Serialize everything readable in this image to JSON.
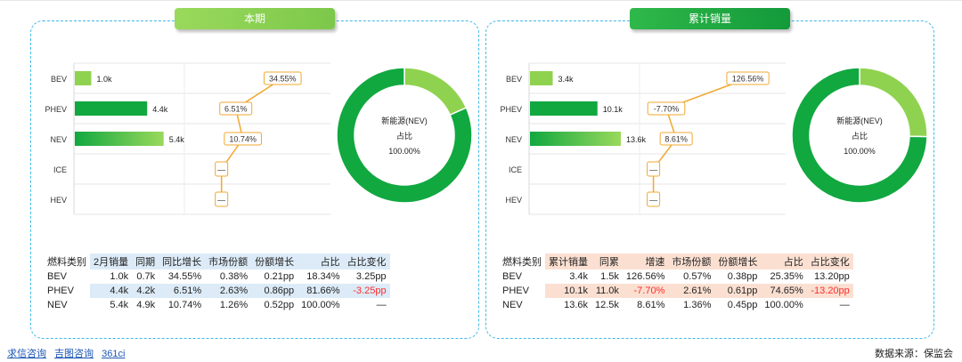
{
  "colors": {
    "bev": "#8fd24f",
    "phev": "#11a840",
    "nev_start": "#11a840",
    "nev_end": "#9ad95c",
    "box_border": "#f0a830",
    "dashed": "#3fb8e8",
    "neg": "#ff2b2b"
  },
  "panels": [
    {
      "id": "left",
      "title": "本期",
      "header_bg": "#dcebf7",
      "chart_data": {
        "type": "bar",
        "categories": [
          "BEV",
          "PHEV",
          "NEV",
          "ICE",
          "HEV"
        ],
        "values": [
          1.0,
          4.4,
          5.4,
          null,
          null
        ],
        "value_labels": [
          "1.0k",
          "4.4k",
          "5.4k",
          "",
          ""
        ],
        "xlim": [
          0,
          6.5
        ],
        "growth": {
          "type": "line",
          "values": [
            34.55,
            6.51,
            10.74,
            null,
            null
          ],
          "labels": [
            "34.55%",
            "6.51%",
            "10.74%",
            "—",
            "—"
          ],
          "xlim": [
            -20,
            60
          ]
        },
        "donut": {
          "type": "pie",
          "slices": [
            {
              "name": "BEV",
              "value": 18.34,
              "color": "#8fd24f"
            },
            {
              "name": "PHEV",
              "value": 81.66,
              "color": "#11a840"
            }
          ],
          "center_lines": [
            "新能源(NEV)",
            "占比",
            "100.00%"
          ]
        }
      },
      "table": {
        "headers": [
          "燃料类别",
          "2月销量",
          "同期",
          "同比增长",
          "市场份额",
          "份额增长",
          "占比",
          "占比变化"
        ],
        "rows": [
          [
            "BEV",
            "1.0k",
            "0.7k",
            "34.55%",
            "0.38%",
            "0.21pp",
            "18.34%",
            "3.25pp"
          ],
          [
            "PHEV",
            "4.4k",
            "4.2k",
            "6.51%",
            "2.63%",
            "0.86pp",
            "81.66%",
            "-3.25pp"
          ],
          [
            "NEV",
            "5.4k",
            "4.9k",
            "10.74%",
            "1.26%",
            "0.52pp",
            "100.00%",
            "—"
          ]
        ]
      }
    },
    {
      "id": "right",
      "title": "累计销量",
      "header_bg": "#fbe0d2",
      "chart_data": {
        "type": "bar",
        "categories": [
          "BEV",
          "PHEV",
          "NEV",
          "ICE",
          "HEV"
        ],
        "values": [
          3.4,
          10.1,
          13.6,
          null,
          null
        ],
        "value_labels": [
          "3.4k",
          "10.1k",
          "13.6k",
          "",
          ""
        ],
        "xlim": [
          0,
          16
        ],
        "growth": {
          "type": "line",
          "values": [
            126.56,
            -7.7,
            8.61,
            null,
            null
          ],
          "labels": [
            "126.56%",
            "-7.70%",
            "8.61%",
            "—",
            "—"
          ],
          "xlim": [
            -40,
            180
          ]
        },
        "donut": {
          "type": "pie",
          "slices": [
            {
              "name": "BEV",
              "value": 25.35,
              "color": "#8fd24f"
            },
            {
              "name": "PHEV",
              "value": 74.65,
              "color": "#11a840"
            }
          ],
          "center_lines": [
            "新能源(NEV)",
            "占比",
            "100.00%"
          ]
        }
      },
      "table": {
        "headers": [
          "燃料类别",
          "累计销量",
          "同累",
          "增速",
          "市场份额",
          "份额增长",
          "占比",
          "占比变化"
        ],
        "rows": [
          [
            "BEV",
            "3.4k",
            "1.5k",
            "126.56%",
            "0.57%",
            "0.38pp",
            "25.35%",
            "13.20pp"
          ],
          [
            "PHEV",
            "10.1k",
            "11.0k",
            "-7.70%",
            "2.61%",
            "0.61pp",
            "74.65%",
            "-13.20pp"
          ],
          [
            "NEV",
            "13.6k",
            "12.5k",
            "8.61%",
            "1.36%",
            "0.45pp",
            "100.00%",
            "—"
          ]
        ]
      }
    }
  ],
  "footer": {
    "links": [
      "求信咨询",
      "吉图咨询",
      "361ci"
    ],
    "source": "数据来源：保监会"
  }
}
